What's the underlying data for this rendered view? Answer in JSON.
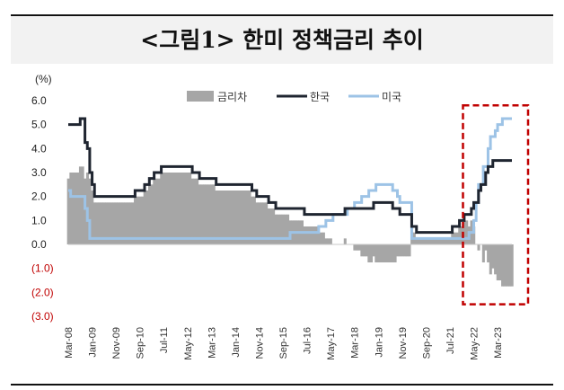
{
  "header": {
    "title": "<그림1> 한미 정책금리 추이"
  },
  "chart_data": {
    "type": "line",
    "title": "<그림1> 한미 정책금리 추이",
    "unit": "(%)",
    "ylim": [
      -3.0,
      6.0
    ],
    "yticks": [
      {
        "value": 6.0,
        "label": "6.0"
      },
      {
        "value": 5.0,
        "label": "5.0"
      },
      {
        "value": 4.0,
        "label": "4.0"
      },
      {
        "value": 3.0,
        "label": "3.0"
      },
      {
        "value": 2.0,
        "label": "2.0"
      },
      {
        "value": 1.0,
        "label": "1.0"
      },
      {
        "value": 0.0,
        "label": "0.0"
      },
      {
        "value": -1.0,
        "label": "(1.0)"
      },
      {
        "value": -2.0,
        "label": "(2.0)"
      },
      {
        "value": -3.0,
        "label": "(3.0)"
      }
    ],
    "x_range": [
      "2008-03",
      "2023-09"
    ],
    "xticks": [
      {
        "date": "2008-03",
        "label": "Mar-08"
      },
      {
        "date": "2009-01",
        "label": "Jan-09"
      },
      {
        "date": "2009-11",
        "label": "Nov-09"
      },
      {
        "date": "2010-09",
        "label": "Sep-10"
      },
      {
        "date": "2011-07",
        "label": "Jul-11"
      },
      {
        "date": "2012-05",
        "label": "May-12"
      },
      {
        "date": "2013-03",
        "label": "Mar-13"
      },
      {
        "date": "2014-01",
        "label": "Jan-14"
      },
      {
        "date": "2014-11",
        "label": "Nov-14"
      },
      {
        "date": "2015-09",
        "label": "Sep-15"
      },
      {
        "date": "2016-07",
        "label": "Jul-16"
      },
      {
        "date": "2017-05",
        "label": "May-17"
      },
      {
        "date": "2018-03",
        "label": "Mar-18"
      },
      {
        "date": "2019-01",
        "label": "Jan-19"
      },
      {
        "date": "2019-11",
        "label": "Nov-19"
      },
      {
        "date": "2020-09",
        "label": "Sep-20"
      },
      {
        "date": "2021-07",
        "label": "Jul-21"
      },
      {
        "date": "2022-05",
        "label": "May-22"
      },
      {
        "date": "2023-03",
        "label": "Mar-23"
      }
    ],
    "legend": {
      "placement": "top",
      "entries": [
        "금리차",
        "한국",
        "미국"
      ]
    },
    "colors": {
      "spread": "#a6a6a6",
      "korea": "#1f2530",
      "us": "#9dc3e6",
      "negative_tick": "#c00000",
      "highlight": "#c00000"
    },
    "highlight_box": {
      "x_from": "2022-02",
      "x_to": "2023-09",
      "y_from": -2.5,
      "y_to": 5.8
    },
    "series": [
      {
        "name": "한국",
        "steps": [
          [
            "2008-03",
            5.0
          ],
          [
            "2008-08",
            5.25
          ],
          [
            "2008-10",
            4.25
          ],
          [
            "2008-11",
            4.0
          ],
          [
            "2008-12",
            3.0
          ],
          [
            "2009-01",
            2.5
          ],
          [
            "2009-02",
            2.0
          ],
          [
            "2010-07",
            2.25
          ],
          [
            "2010-11",
            2.5
          ],
          [
            "2011-01",
            2.75
          ],
          [
            "2011-03",
            3.0
          ],
          [
            "2011-06",
            3.25
          ],
          [
            "2012-07",
            3.0
          ],
          [
            "2012-10",
            2.75
          ],
          [
            "2013-05",
            2.5
          ],
          [
            "2014-08",
            2.25
          ],
          [
            "2014-10",
            2.0
          ],
          [
            "2015-03",
            1.75
          ],
          [
            "2015-06",
            1.5
          ],
          [
            "2016-06",
            1.25
          ],
          [
            "2017-11",
            1.5
          ],
          [
            "2018-11",
            1.75
          ],
          [
            "2019-07",
            1.5
          ],
          [
            "2019-10",
            1.25
          ],
          [
            "2020-03",
            0.75
          ],
          [
            "2020-05",
            0.5
          ],
          [
            "2021-08",
            0.75
          ],
          [
            "2021-11",
            1.0
          ],
          [
            "2022-01",
            1.25
          ],
          [
            "2022-04",
            1.5
          ],
          [
            "2022-05",
            1.75
          ],
          [
            "2022-07",
            2.25
          ],
          [
            "2022-08",
            2.5
          ],
          [
            "2022-10",
            3.0
          ],
          [
            "2022-11",
            3.25
          ],
          [
            "2023-01",
            3.5
          ],
          [
            "2023-09",
            3.5
          ]
        ]
      },
      {
        "name": "미국",
        "steps": [
          [
            "2008-03",
            2.25
          ],
          [
            "2008-04",
            2.0
          ],
          [
            "2008-10",
            1.5
          ],
          [
            "2008-11",
            1.0
          ],
          [
            "2008-12",
            0.25
          ],
          [
            "2015-12",
            0.5
          ],
          [
            "2016-12",
            0.75
          ],
          [
            "2017-03",
            1.0
          ],
          [
            "2017-06",
            1.25
          ],
          [
            "2017-12",
            1.5
          ],
          [
            "2018-03",
            1.75
          ],
          [
            "2018-06",
            2.0
          ],
          [
            "2018-09",
            2.25
          ],
          [
            "2018-12",
            2.5
          ],
          [
            "2019-07",
            2.25
          ],
          [
            "2019-09",
            2.0
          ],
          [
            "2019-10",
            1.75
          ],
          [
            "2020-03",
            0.25
          ],
          [
            "2022-03",
            0.5
          ],
          [
            "2022-05",
            1.0
          ],
          [
            "2022-06",
            1.75
          ],
          [
            "2022-07",
            2.5
          ],
          [
            "2022-09",
            3.25
          ],
          [
            "2022-11",
            4.0
          ],
          [
            "2022-12",
            4.5
          ],
          [
            "2023-02",
            4.75
          ],
          [
            "2023-03",
            5.0
          ],
          [
            "2023-05",
            5.25
          ],
          [
            "2023-09",
            5.25
          ]
        ]
      }
    ],
    "spread_series": {
      "name": "금리차",
      "definition": "한국 - 미국"
    }
  }
}
